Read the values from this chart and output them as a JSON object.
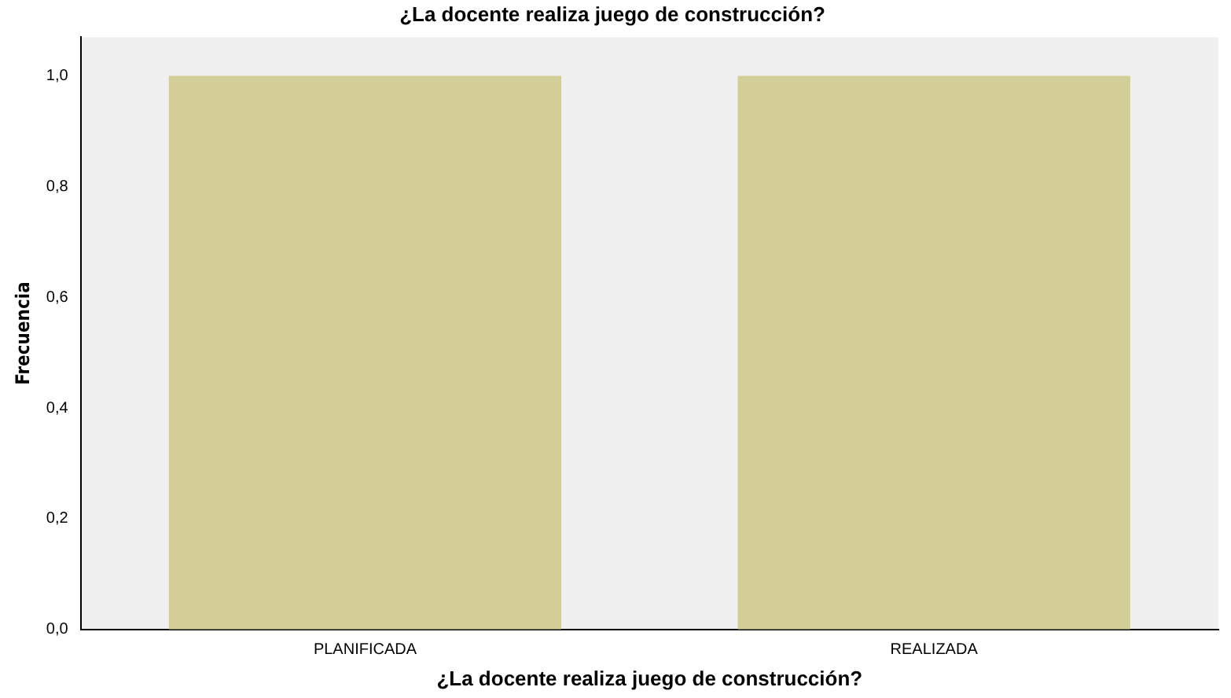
{
  "chart_data": {
    "type": "bar",
    "title": "¿La docente realiza juego de construcción?",
    "xlabel": "¿La docente realiza juego de construcción?",
    "ylabel": "Frecuencia",
    "categories": [
      "PLANIFICADA",
      "REALIZADA"
    ],
    "values": [
      1,
      1
    ],
    "color": "#d3ce97",
    "ylim": [
      0,
      1.07
    ],
    "yticks": [
      {
        "value": 0,
        "label": "0,0"
      },
      {
        "value": 0.2,
        "label": "0,2"
      },
      {
        "value": 0.4,
        "label": "0,4"
      },
      {
        "value": 0.6,
        "label": "0,6"
      },
      {
        "value": 0.8,
        "label": "0,8"
      },
      {
        "value": 1,
        "label": "1,0"
      }
    ],
    "grid": false,
    "legend": false
  }
}
